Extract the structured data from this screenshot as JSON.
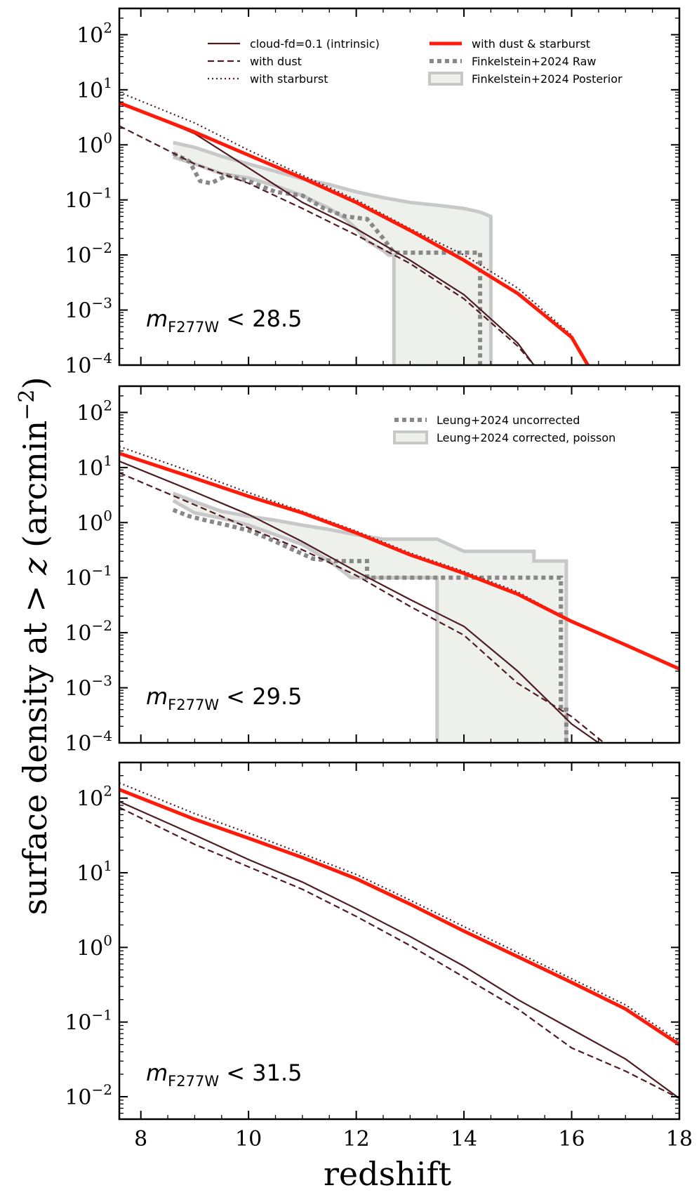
{
  "chart_data": {
    "type": "line",
    "xlabel": "redshift",
    "ylabel": "surface density at > z (arcmin",
    "ylabel_exp": "−2",
    "ylabel_close": ")",
    "ylabel_z": "z",
    "xlim": [
      7.6,
      18
    ],
    "x_ticks": [
      "8",
      "10",
      "12",
      "14",
      "16",
      "18"
    ],
    "panels": [
      {
        "annotation": {
          "m": "m",
          "sub": "F277W",
          "cut": " < 28.5"
        },
        "ylim": [
          0.0001,
          300
        ],
        "y_ticks": [
          {
            "base": "10",
            "exp": "2",
            "value": 100
          },
          {
            "base": "10",
            "exp": "1",
            "value": 10
          },
          {
            "base": "10",
            "exp": "0",
            "value": 1
          },
          {
            "base": "10",
            "exp": "−1",
            "value": 0.1
          },
          {
            "base": "10",
            "exp": "−2",
            "value": 0.01
          },
          {
            "base": "10",
            "exp": "−3",
            "value": 0.001
          },
          {
            "base": "10",
            "exp": "−4",
            "value": 0.0001
          }
        ],
        "legend": [
          {
            "label": "cloud-fd=0.1 (intrinsic)",
            "style": "intrinsic"
          },
          {
            "label": "with dust",
            "style": "dust"
          },
          {
            "label": "with starburst",
            "style": "starburst"
          },
          {
            "label": "with dust & starburst",
            "style": "both"
          },
          {
            "label": "Finkelstein+2024 Raw",
            "style": "obs_raw"
          },
          {
            "label": "Finkelstein+2024 Posterior",
            "style": "obs_band"
          }
        ],
        "series": [
          {
            "name": "cloud-fd=0.1 (intrinsic)",
            "style": "intrinsic",
            "x": [
              7.6,
              9,
              10,
              11,
              12,
              13,
              14,
              15,
              15.3
            ],
            "y": [
              6,
              1.6,
              0.38,
              0.09,
              0.03,
              0.008,
              0.0019,
              0.00025,
              0.0001
            ]
          },
          {
            "name": "with dust",
            "style": "dust",
            "x": [
              7.6,
              9,
              10,
              11,
              12,
              13,
              14,
              15,
              15.3
            ],
            "y": [
              2.2,
              0.45,
              0.2,
              0.07,
              0.023,
              0.007,
              0.0016,
              0.00022,
              0.0001
            ]
          },
          {
            "name": "with starburst",
            "style": "starburst",
            "x": [
              7.6,
              9,
              10,
              11,
              12,
              13,
              14,
              15,
              16,
              16.3
            ],
            "y": [
              9,
              2.5,
              0.8,
              0.28,
              0.1,
              0.03,
              0.01,
              0.0025,
              0.00035,
              0.0001
            ]
          },
          {
            "name": "with dust & starburst",
            "style": "both",
            "x": [
              7.6,
              9,
              10,
              11,
              12,
              13,
              14,
              15,
              16,
              16.3
            ],
            "y": [
              5.8,
              1.7,
              0.65,
              0.25,
              0.09,
              0.028,
              0.008,
              0.002,
              0.00032,
              0.0001
            ]
          },
          {
            "name": "Finkelstein+2024 Raw",
            "style": "obs_raw",
            "x": [
              8.6,
              8.9,
              9.1,
              9.3,
              9.6,
              10,
              10.5,
              11,
              11.4,
              11.8,
              12.2,
              12.5,
              12.7,
              14.3,
              14.3
            ],
            "y": [
              0.7,
              0.5,
              0.22,
              0.2,
              0.28,
              0.22,
              0.14,
              0.12,
              0.07,
              0.05,
              0.045,
              0.02,
              0.011,
              0.011,
              0.0001
            ]
          },
          {
            "name": "Finkelstein+2024 Posterior",
            "style": "obs_band",
            "upper_x": [
              8.6,
              9,
              9.5,
              10,
              10.5,
              11,
              11.5,
              12,
              12.5,
              13,
              13.5,
              14,
              14.3,
              14.5,
              14.5
            ],
            "upper_y": [
              1.1,
              0.9,
              0.62,
              0.45,
              0.33,
              0.24,
              0.19,
              0.14,
              0.11,
              0.09,
              0.08,
              0.07,
              0.06,
              0.05,
              0.0001
            ],
            "lower_x": [
              8.6,
              9,
              9.5,
              10,
              10.5,
              11,
              11.5,
              11.8,
              12,
              12.2,
              12.5,
              12.6,
              12.7,
              12.7
            ],
            "lower_y": [
              0.6,
              0.45,
              0.3,
              0.25,
              0.18,
              0.12,
              0.07,
              0.045,
              0.03,
              0.018,
              0.012,
              0.01,
              0.01,
              0.0001
            ]
          }
        ]
      },
      {
        "annotation": {
          "m": "m",
          "sub": "F277W",
          "cut": " < 29.5"
        },
        "ylim": [
          0.0001,
          300
        ],
        "y_ticks": [
          {
            "base": "10",
            "exp": "2",
            "value": 100
          },
          {
            "base": "10",
            "exp": "1",
            "value": 10
          },
          {
            "base": "10",
            "exp": "0",
            "value": 1
          },
          {
            "base": "10",
            "exp": "−1",
            "value": 0.1
          },
          {
            "base": "10",
            "exp": "−2",
            "value": 0.01
          },
          {
            "base": "10",
            "exp": "−3",
            "value": 0.001
          },
          {
            "base": "10",
            "exp": "−4",
            "value": 0.0001
          }
        ],
        "legend": [
          {
            "label": "Leung+2024 uncorrected",
            "style": "obs_raw"
          },
          {
            "label": "Leung+2024 corrected, poisson",
            "style": "obs_band"
          }
        ],
        "series": [
          {
            "name": "cloud-fd=0.1 (intrinsic)",
            "style": "intrinsic",
            "x": [
              7.6,
              9,
              10,
              11,
              12,
              13,
              14,
              15,
              16,
              16.5
            ],
            "y": [
              13,
              3.6,
              1.4,
              0.45,
              0.13,
              0.04,
              0.013,
              0.002,
              0.00022,
              0.0001
            ]
          },
          {
            "name": "with dust",
            "style": "dust",
            "x": [
              7.6,
              9,
              10,
              11,
              12,
              13,
              14,
              15,
              16,
              16.6
            ],
            "y": [
              8,
              2.1,
              0.8,
              0.32,
              0.11,
              0.03,
              0.009,
              0.0012,
              0.0003,
              0.0001
            ]
          },
          {
            "name": "with starburst",
            "style": "starburst",
            "x": [
              7.6,
              9,
              10,
              11,
              12,
              13,
              14,
              15,
              16
            ],
            "y": [
              24,
              8,
              3.5,
              1.6,
              0.7,
              0.28,
              0.13,
              0.055,
              0.016
            ]
          },
          {
            "name": "with dust & starburst",
            "style": "both",
            "x": [
              7.6,
              9,
              10,
              11,
              12,
              13,
              14,
              15,
              16,
              17,
              18
            ],
            "y": [
              18,
              6.4,
              3,
              1.5,
              0.65,
              0.26,
              0.12,
              0.05,
              0.016,
              0.006,
              0.0022
            ]
          },
          {
            "name": "Leung+2024 uncorrected",
            "style": "obs_raw",
            "x": [
              8.6,
              8.9,
              9.2,
              9.6,
              10,
              10.4,
              10.8,
              11.2,
              11.6,
              12,
              12.2,
              12.2,
              14.8,
              15.8,
              15.8,
              15.9,
              15.9
            ],
            "y": [
              1.7,
              1.3,
              1.1,
              0.9,
              0.72,
              0.5,
              0.33,
              0.22,
              0.2,
              0.2,
              0.2,
              0.1,
              0.1,
              0.1,
              0.0004,
              0.0004,
              0.0001
            ]
          },
          {
            "name": "Leung+2024 corrected, poisson",
            "style": "obs_band",
            "upper_x": [
              8.6,
              9,
              9.5,
              10,
              10.5,
              11,
              11.5,
              12,
              12.5,
              13,
              13.5,
              14,
              14.5,
              15,
              15.3,
              15.3,
              15.9,
              15.9
            ],
            "upper_y": [
              3.4,
              2.4,
              1.6,
              1.3,
              1.1,
              0.9,
              0.75,
              0.6,
              0.5,
              0.5,
              0.5,
              0.3,
              0.3,
              0.3,
              0.3,
              0.2,
              0.2,
              0.0001
            ],
            "lower_x": [
              8.6,
              9,
              9.5,
              10,
              10.5,
              11,
              11.5,
              11.8,
              11.9,
              13,
              13.5,
              13.5
            ],
            "lower_y": [
              2.5,
              1.5,
              1.2,
              0.9,
              0.6,
              0.4,
              0.2,
              0.12,
              0.1,
              0.1,
              0.1,
              0.0001
            ]
          }
        ]
      },
      {
        "annotation": {
          "m": "m",
          "sub": "F277W",
          "cut": " < 31.5"
        },
        "ylim": [
          0.005,
          300
        ],
        "y_ticks": [
          {
            "base": "10",
            "exp": "2",
            "value": 100
          },
          {
            "base": "10",
            "exp": "1",
            "value": 10
          },
          {
            "base": "10",
            "exp": "0",
            "value": 1
          },
          {
            "base": "10",
            "exp": "−1",
            "value": 0.1
          },
          {
            "base": "10",
            "exp": "−2",
            "value": 0.01
          }
        ],
        "legend": [],
        "series": [
          {
            "name": "cloud-fd=0.1 (intrinsic)",
            "style": "intrinsic",
            "x": [
              7.6,
              9,
              10,
              11,
              12,
              13,
              14,
              15,
              16,
              17,
              18
            ],
            "y": [
              90,
              32,
              15,
              7.5,
              3.3,
              1.4,
              0.56,
              0.2,
              0.08,
              0.032,
              0.0095
            ]
          },
          {
            "name": "with dust",
            "style": "dust",
            "x": [
              7.6,
              9,
              10,
              11,
              12,
              13,
              14,
              15,
              16,
              17,
              18
            ],
            "y": [
              75,
              24,
              12,
              6,
              2.6,
              1.06,
              0.4,
              0.15,
              0.045,
              0.022,
              0.0095
            ]
          },
          {
            "name": "with starburst",
            "style": "starburst",
            "x": [
              7.6,
              9,
              10,
              11,
              12,
              13,
              14,
              15,
              16,
              17,
              18
            ],
            "y": [
              160,
              62,
              34,
              18,
              9.5,
              4.3,
              1.9,
              0.85,
              0.38,
              0.17,
              0.055
            ]
          },
          {
            "name": "with dust & starburst",
            "style": "both",
            "x": [
              7.6,
              9,
              10,
              11,
              12,
              13,
              14,
              15,
              16,
              17,
              18
            ],
            "y": [
              130,
              52,
              29,
              16,
              8.3,
              3.8,
              1.65,
              0.75,
              0.34,
              0.15,
              0.05
            ]
          }
        ]
      }
    ],
    "colors": {
      "model": "#4f1c22",
      "both": "#ff1a0a",
      "obs_raw": "#888888",
      "obs_band": "#c8c8c8",
      "band_fill": "#eef0ec"
    }
  }
}
